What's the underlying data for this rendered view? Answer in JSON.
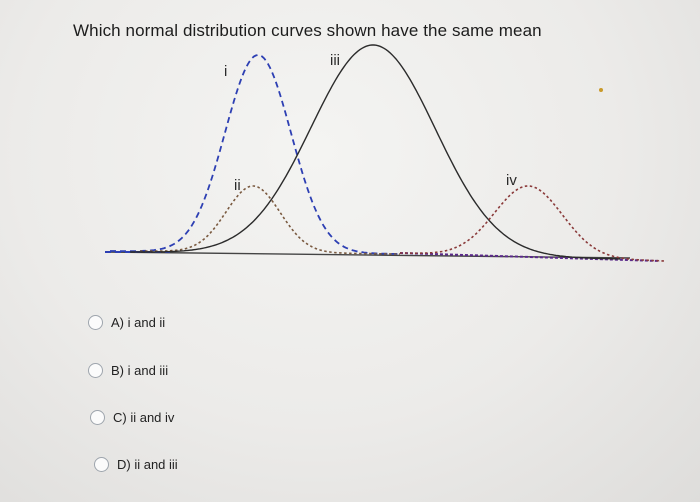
{
  "question": "Which normal distribution curves shown have the same mean",
  "curves": [
    {
      "label": "i",
      "color": "#2d3fb3",
      "style": "dashed"
    },
    {
      "label": "ii",
      "color": "#7a5a40",
      "style": "dotted"
    },
    {
      "label": "iii",
      "color": "#2b2b2b",
      "style": "solid"
    },
    {
      "label": "iv",
      "color": "#8a3a3a",
      "style": "dotted"
    }
  ],
  "axis_line_color": "#5a2a8a",
  "options": [
    {
      "id": "A",
      "label": "A) i and ii"
    },
    {
      "id": "B",
      "label": "B) i and iii"
    },
    {
      "id": "C",
      "label": "C) ii and iv"
    },
    {
      "id": "D",
      "label": "D) ii and iii"
    }
  ]
}
